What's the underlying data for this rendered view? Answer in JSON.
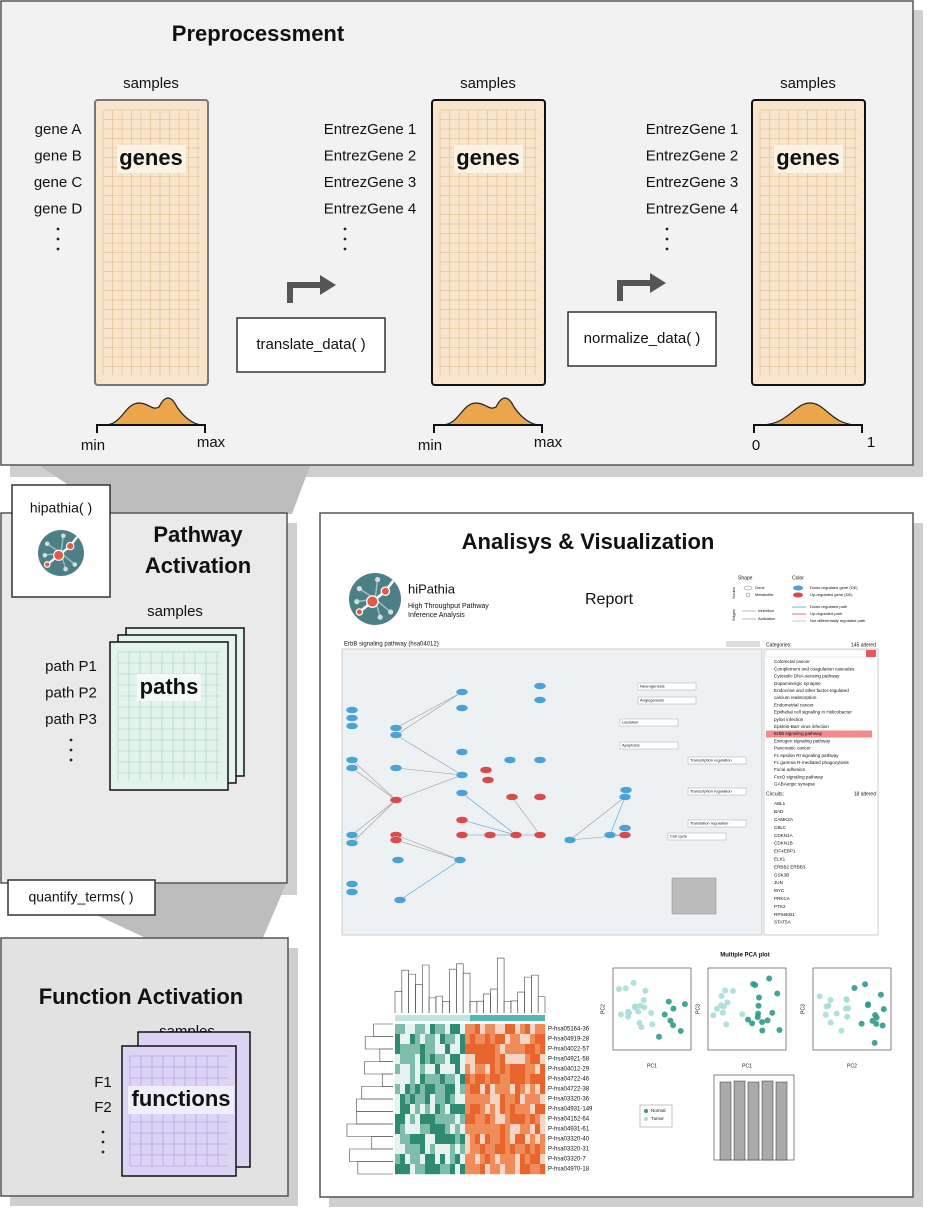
{
  "preprocessment": {
    "title": "Preprocessment",
    "steps": [
      {
        "samples_label": "samples",
        "row_labels": [
          "gene A",
          "gene B",
          "gene C",
          "gene D"
        ],
        "matrix_label": "genes",
        "axis_min": "min",
        "axis_max": "max"
      },
      {
        "samples_label": "samples",
        "row_labels": [
          "EntrezGene 1",
          "EntrezGene 2",
          "EntrezGene 3",
          "EntrezGene 4"
        ],
        "matrix_label": "genes",
        "axis_min": "min",
        "axis_max": "max"
      },
      {
        "samples_label": "samples",
        "row_labels": [
          "EntrezGene 1",
          "EntrezGene 2",
          "EntrezGene 3",
          "EntrezGene 4"
        ],
        "matrix_label": "genes",
        "axis_min": "0",
        "axis_max": "1"
      }
    ],
    "functions": [
      "translate_data( )",
      "normalize_data( )"
    ]
  },
  "pathway_activation": {
    "function": "hipathia( )",
    "title_lines": [
      "Pathway",
      "Activation"
    ],
    "samples_label": "samples",
    "row_labels": [
      "path P1",
      "path P2",
      "path P3"
    ],
    "matrix_label": "paths"
  },
  "function_activation": {
    "function": "quantify_terms( )",
    "title": "Function Activation",
    "samples_label": "samples",
    "row_labels": [
      "F1",
      "F2"
    ],
    "matrix_label": "functions"
  },
  "analysis": {
    "title": "Analisys & Visualization",
    "report": {
      "brand": "hiPathia",
      "tagline": [
        "High Throughput Pathway",
        "Inference Analysis"
      ],
      "heading": "Report",
      "legend": {
        "shape": "Shape",
        "color": "Color",
        "nodes": "Nodes",
        "edges": "Edges",
        "gene": "Gene",
        "metabolite": "Metabolite",
        "inhibition": "Inhibition",
        "activation": "Activation",
        "color_items": [
          "Down-regulated gene (DE)",
          "Up-regulated gene (DE)",
          "Down-regulated path",
          "Up-regulated path",
          "Not differentially regulated path"
        ]
      },
      "pathway_title": "ErbB signaling pathway (hsa04012)",
      "function_nodes": [
        "Neurogenesis",
        "Angiogenesis",
        "Lactation",
        "Apoptosis",
        "Transcription regulation",
        "Transcription regulation",
        "Translation regulation",
        "Cell cycle"
      ],
      "categories_header": "Categories:",
      "categories_count": "145 altered",
      "categories": [
        "Colorectal cancer",
        "Complement and coagulation cascades",
        "Cytosolic DNA-sensing pathway",
        "Dopaminergic synapse",
        "Endocrine and other factor-regulated",
        "calcium reabsorption",
        "Endometrial cancer",
        "Epithelial cell signaling in Helicobacter",
        "pylori infection",
        "Epstein-Barr virus infection",
        "ErbB signaling pathway",
        "Estrogen signaling pathway",
        "Pancreatic cancer",
        "Fc epsilon RI signaling pathway",
        "Fc gamma R-mediated phagocytosis",
        "Focal adhesion",
        "FoxO signaling pathway",
        "GABAergic synapse"
      ],
      "circuits_header": "Circuits:",
      "circuits_count": "18 altered",
      "circuits": [
        "ABL1",
        "BAD",
        "CAMK2A",
        "CBLC",
        "CDKN1A",
        "CDKN1B",
        "EIF4EBP1",
        "ELK1",
        "ERBB2 ERBB3",
        "GSK3B",
        "JUN",
        "MYC",
        "PRKCA",
        "PTK2",
        "RPS6KB1",
        "STAT5A"
      ],
      "heatmap_rows": [
        "P-hsa05164-36",
        "P-hsa04919-28",
        "P-hsa04022-57",
        "P-hsa04921-58",
        "P-hsa04012-29",
        "P-hsa04722-46",
        "P-hsa04722-38",
        "P-hsa03320-36",
        "P-hsa04931-149",
        "P-hsa04152-64",
        "P-hsa04931-61",
        "P-hsa03320-40",
        "P-hsa03320-31",
        "P-hsa03320-7",
        "P-hsa04970-18"
      ],
      "pca_title": "Multiple PCA plot",
      "pca_axes": [
        [
          "PC1",
          "PC2"
        ],
        [
          "PC1",
          "PC3"
        ],
        [
          "PC2",
          "PC3"
        ]
      ],
      "groups": [
        "Normal",
        "Tumor"
      ]
    }
  }
}
